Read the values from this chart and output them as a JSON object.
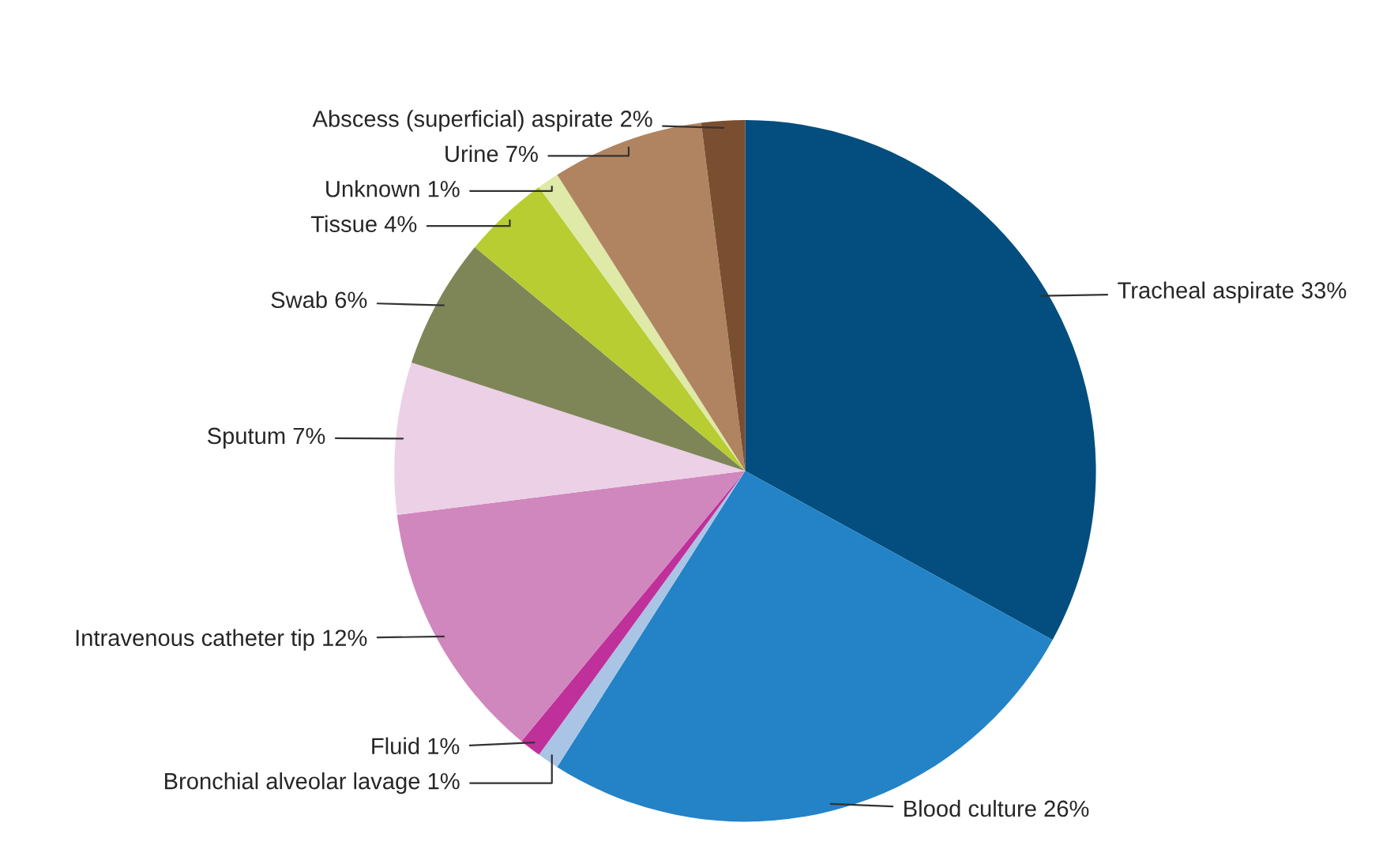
{
  "chart_data": {
    "type": "pie",
    "categories": [
      "Tracheal aspirate",
      "Blood culture",
      "Bronchial alveolar lavage",
      "Fluid",
      "Intravenous catheter tip",
      "Sputum",
      "Swab",
      "Tissue",
      "Unknown",
      "Urine",
      "Abscess (superficial) aspirate"
    ],
    "values": [
      33,
      26,
      1,
      1,
      12,
      7,
      6,
      4,
      1,
      7,
      2
    ],
    "value_labels": [
      "33%",
      "26%",
      "1%",
      "1%",
      "12%",
      "7%",
      "6%",
      "4%",
      "1%",
      "7%",
      "2%"
    ],
    "colors": [
      "#034e7e",
      "#2383c6",
      "#a9c4e4",
      "#c0309a",
      "#d087bd",
      "#ecd0e6",
      "#7e8658",
      "#b8cd32",
      "#dfe9a8",
      "#b08460",
      "#7a4e30"
    ],
    "legend": false
  }
}
